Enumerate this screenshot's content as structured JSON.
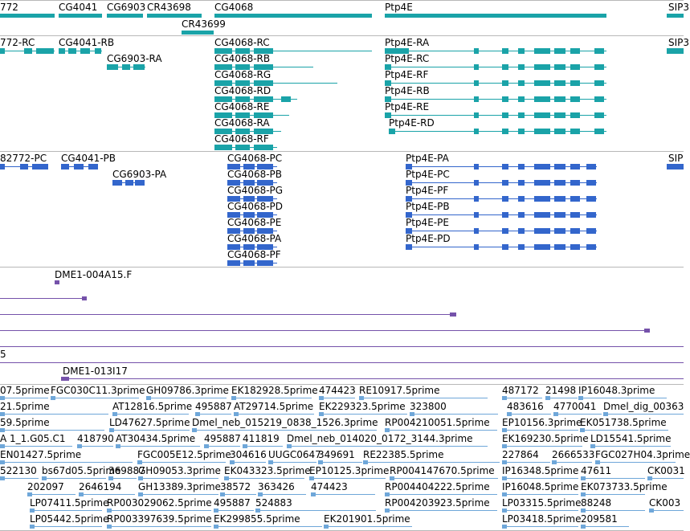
{
  "colors": {
    "gene": "#1aa3a8",
    "transcript": "#1aa3a8",
    "protein": "#3366cc",
    "clone": "#7552aa",
    "est": "#6fa7d9",
    "separator": "#b8b8b8"
  },
  "track_genes": {
    "labels": [
      "772",
      "CG4041",
      "CG6903",
      "CR43698",
      "CG4068",
      "CR43699",
      "Ptp4E",
      "SIP3"
    ]
  },
  "track_transcripts": {
    "labels": [
      "772-RC",
      "CG4041-RB",
      "CG6903-RA",
      "CG4068-RC",
      "CG4068-RB",
      "CG4068-RG",
      "CG4068-RD",
      "CG4068-RE",
      "CG4068-RA",
      "CG4068-RF",
      "Ptp4E-RA",
      "Ptp4E-RC",
      "Ptp4E-RF",
      "Ptp4E-RB",
      "Ptp4E-RE",
      "Ptp4E-RD",
      "SIP3"
    ]
  },
  "track_proteins": {
    "labels": [
      "82772-PC",
      "CG4041-PB",
      "CG6903-PA",
      "CG4068-PC",
      "CG4068-PB",
      "CG4068-PG",
      "CG4068-PD",
      "CG4068-PE",
      "CG4068-PA",
      "CG4068-PF",
      "Ptp4E-PA",
      "Ptp4E-PC",
      "Ptp4E-PF",
      "Ptp4E-PB",
      "Ptp4E-PE",
      "Ptp4E-PD",
      "SIP"
    ]
  },
  "track_clones": {
    "labels": [
      "DME1-004A15.F",
      "5",
      "DME1-013I17"
    ]
  },
  "track_ests": {
    "labels": [
      "07.5prime",
      "FGC030C11.3prime",
      "GH09786.3prime",
      "EK182928.5prime",
      "474423",
      "RE10917.5prime",
      "487172",
      "21498",
      "IP16048.3prime",
      "21.5prime",
      "AT12816.5prime",
      "495887",
      "AT29714.5prime",
      "EK229323.5prime",
      "323800",
      "483616",
      "4770041",
      "Dmel_dig_00363",
      "59.5prime",
      "LD47627.5prime",
      "Dmel_neb_015219_0838_1526.3prime",
      "RP004210051.5prime",
      "EP10156.3prime",
      "EK051738.5prime",
      "A 1_1.G05.C1",
      "418790",
      "AT30434.5prime",
      "495887",
      "411819",
      "Dmel_neb_014020_0172_3144.3prime",
      "EK169230.5prime",
      "LD15541.5prime",
      "EN01427.5prime",
      "FGC005E12.5prime",
      "304616",
      "UUGC0647",
      "349691",
      "RE22385.5prime",
      "227864",
      "2666533",
      "FGC027H04.3prime",
      "522130",
      "bs67d05.5prime",
      "369887",
      "GH09053.3prime",
      "EK043323.5prime",
      "EP10125.3prime",
      "RP004147670.5prime",
      "IP16348.5prime",
      "47611",
      "CK0031",
      "202097",
      "2646194",
      "GH13389.3prime",
      "38572",
      "363426",
      "474423",
      "RP004404222.5prime",
      "IP16048.5prime",
      "EK073733.5prime",
      "LP07411.5prime",
      "RP003029062.5prime",
      "495887",
      "524883",
      "RP004203923.5prime",
      "LP03315.5prime",
      "88248",
      "CK003",
      "LP05442.5prime",
      "RP003397639.5prime",
      "EK299855.5prime",
      "EK201901.5prime",
      "LP03418.5prime",
      "209581"
    ]
  }
}
